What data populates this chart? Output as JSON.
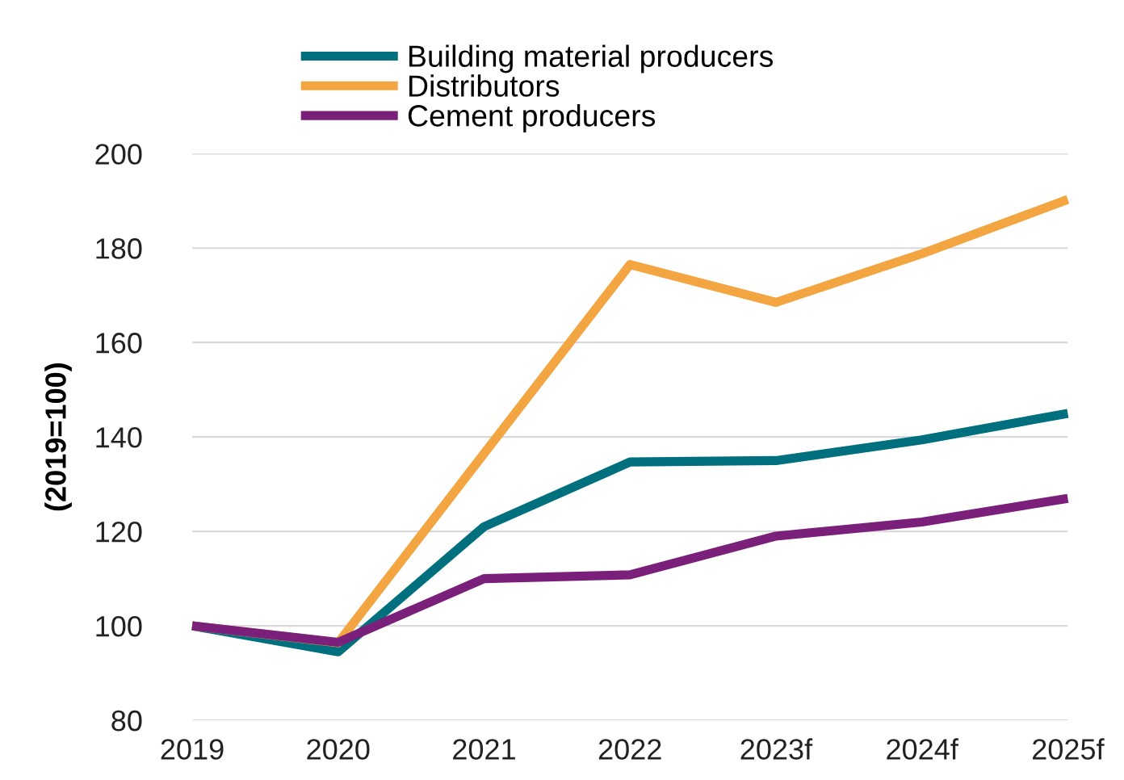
{
  "chart_data": {
    "type": "line",
    "ylabel": "(2019=100)",
    "categories": [
      "2019",
      "2020",
      "2021",
      "2022",
      "2023f",
      "2024f",
      "2025f"
    ],
    "series": [
      {
        "name": "Building material producers",
        "color": "#00707f",
        "values": [
          100,
          94.5,
          121,
          134.7,
          135,
          139.4,
          145
        ]
      },
      {
        "name": "Distributors",
        "color": "#f2a541",
        "values": [
          100,
          96.4,
          136.5,
          176.5,
          168.5,
          178.8,
          190.3
        ]
      },
      {
        "name": "Cement producers",
        "color": "#7a1f7a",
        "values": [
          100,
          96.5,
          110,
          110.8,
          119,
          122,
          127
        ]
      }
    ],
    "ylim": [
      80,
      200
    ],
    "yticks": [
      80,
      100,
      120,
      140,
      160,
      180,
      200
    ],
    "grid": "y",
    "legend": "top",
    "marker": "none",
    "line_style": "solid"
  }
}
